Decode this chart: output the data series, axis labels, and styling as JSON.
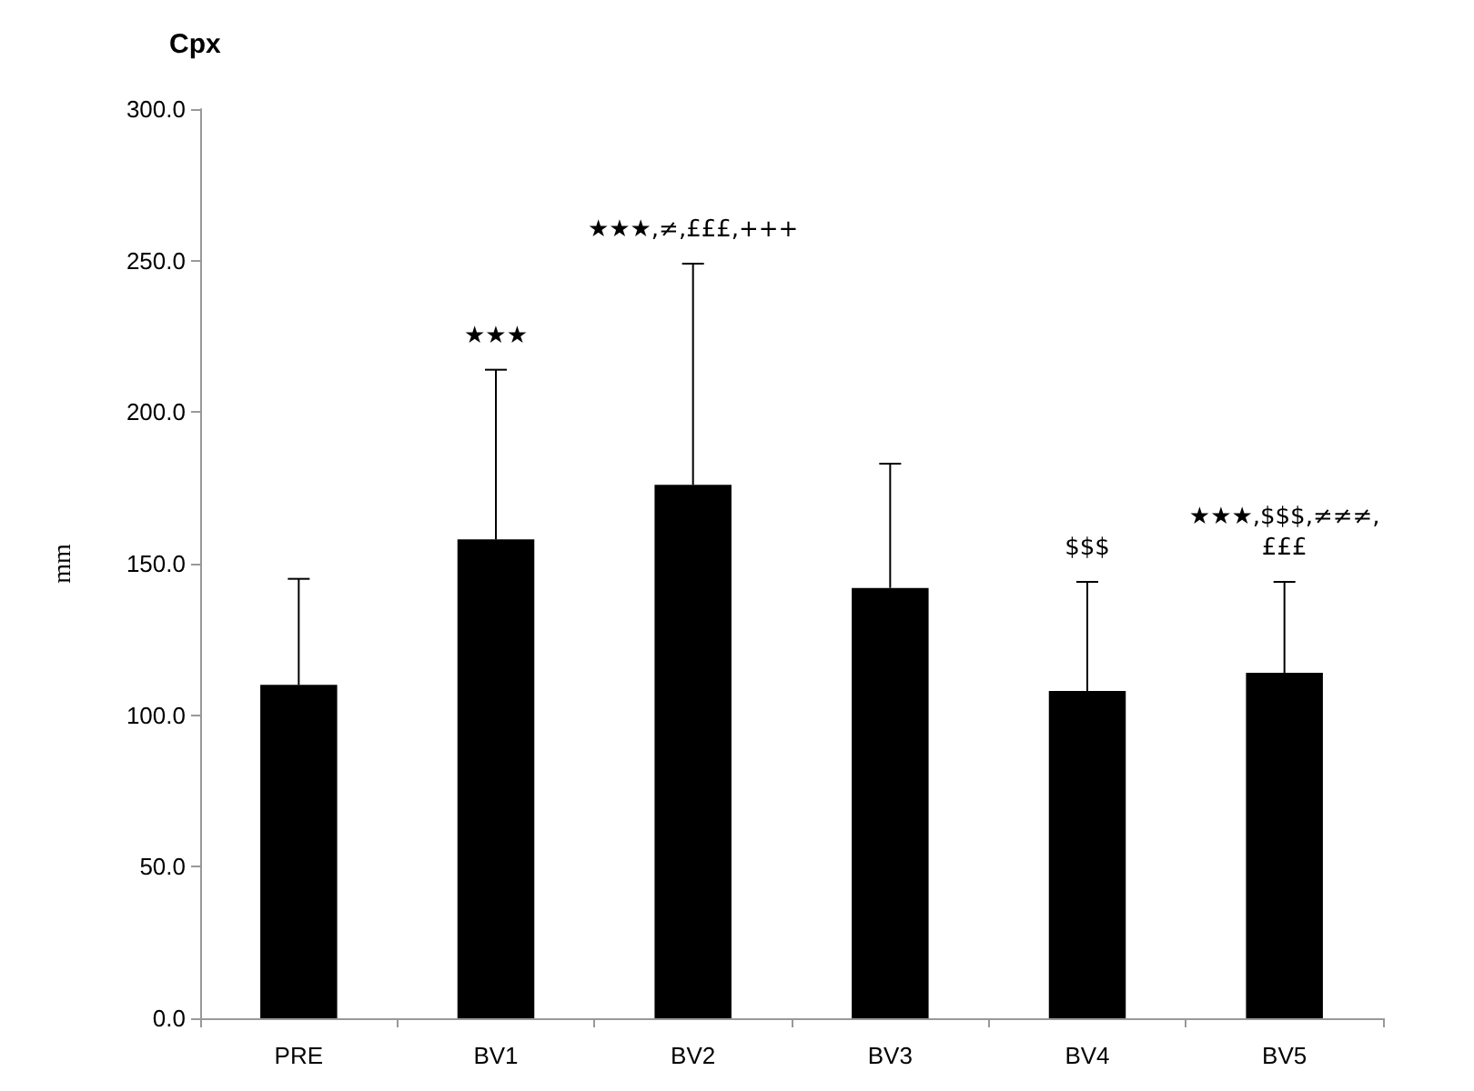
{
  "chart_data": {
    "type": "bar",
    "title": "Cpx",
    "ylabel": "mm",
    "categories": [
      "PRE",
      "BV1",
      "BV2",
      "BV3",
      "BV4",
      "BV5"
    ],
    "values": [
      110,
      158,
      176,
      142,
      108,
      114
    ],
    "errors": [
      [
        110,
        145
      ],
      [
        158,
        214
      ],
      [
        176,
        249
      ],
      [
        142,
        183
      ],
      [
        108,
        144
      ],
      [
        114,
        144
      ]
    ],
    "color": "#000000",
    "ylim": [
      0,
      300
    ],
    "yticks": [
      {
        "value": 0,
        "label": "0.0"
      },
      {
        "value": 50,
        "label": "50.0"
      },
      {
        "value": 100,
        "label": "100.0"
      },
      {
        "value": 150,
        "label": "150.0"
      },
      {
        "value": 200,
        "label": "200.0"
      },
      {
        "value": 250,
        "label": "250.0"
      },
      {
        "value": 300,
        "label": "300.0"
      }
    ],
    "grid": false,
    "annotations": [
      {
        "text": "★★★",
        "x": "BV1",
        "y": 214
      },
      {
        "text": "★★★,≠,£££,+++",
        "x": "BV2",
        "y": 249
      },
      {
        "text": "$$$",
        "x": "BV4",
        "y": 144
      },
      {
        "text": "★★★,$$$,≠≠≠,\n£££",
        "x": "BV5",
        "y": 144
      }
    ]
  }
}
